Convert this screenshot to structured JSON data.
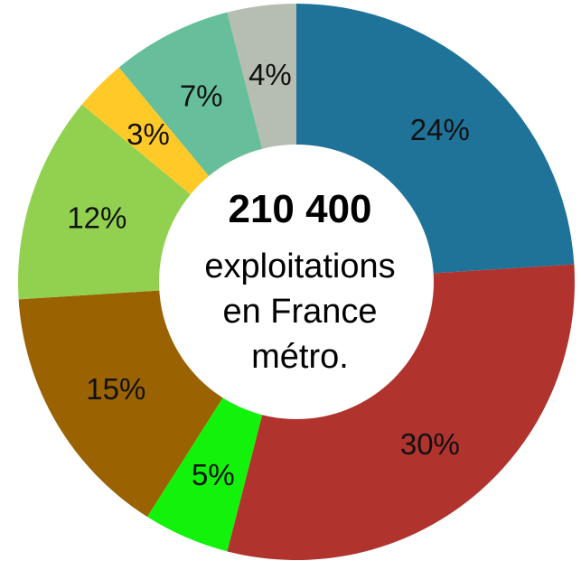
{
  "chart_data": {
    "type": "pie",
    "donut": true,
    "center_text": {
      "number": "210 400",
      "line1": "exploitations",
      "line2": "en France",
      "line3": "métro."
    },
    "slices": [
      {
        "label": "24%",
        "value": 24,
        "color": "#1f7399"
      },
      {
        "label": "30%",
        "value": 30,
        "color": "#b0332e"
      },
      {
        "label": "5%",
        "value": 5,
        "color": "#12f20a"
      },
      {
        "label": "15%",
        "value": 15,
        "color": "#9a6200"
      },
      {
        "label": "12%",
        "value": 12,
        "color": "#92d050"
      },
      {
        "label": "3%",
        "value": 3,
        "color": "#ffca28"
      },
      {
        "label": "7%",
        "value": 7,
        "color": "#66bf9a"
      },
      {
        "label": "4%",
        "value": 4,
        "color": "#b5beb1"
      }
    ]
  }
}
